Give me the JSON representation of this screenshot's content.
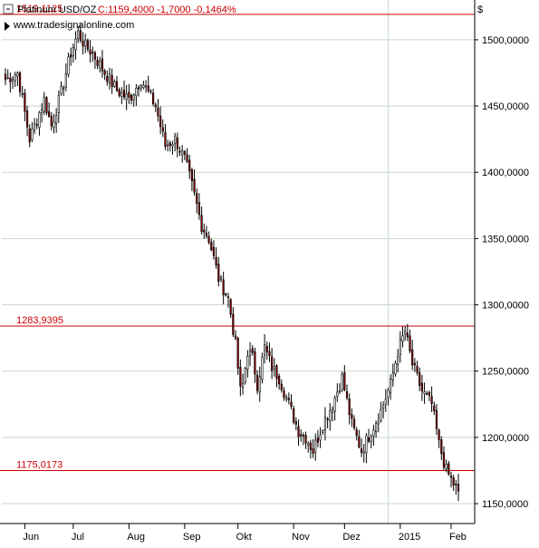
{
  "header": {
    "instrument": "Platinum USD/OZ",
    "quote": "C:1159,4000 -1,7000 -0,1464%",
    "website": "www.tradesignalonline.com"
  },
  "colors": {
    "background": "#ffffff",
    "grid": "#c8d8c8",
    "axis": "#000000",
    "up_candle": "#ffffff",
    "down_candle": "#8b0000",
    "candle_outline": "#000000",
    "level_line": "#cc0000",
    "quote_text": "#cc0000",
    "level_text": "#cc0000"
  },
  "icons": {
    "collapse": "collapse-toggle-icon",
    "site": "globe-icon"
  },
  "chart_data": {
    "type": "candlestick",
    "y_axis": {
      "unit": "$",
      "min": 1135,
      "max": 1530,
      "ticks": [
        {
          "value": 1150,
          "label": "1150,0000"
        },
        {
          "value": 1200,
          "label": "1200,0000"
        },
        {
          "value": 1250,
          "label": "1250,0000"
        },
        {
          "value": 1300,
          "label": "1300,0000"
        },
        {
          "value": 1350,
          "label": "1350,0000"
        },
        {
          "value": 1400,
          "label": "1400,0000"
        },
        {
          "value": 1450,
          "label": "1450,0000"
        },
        {
          "value": 1500,
          "label": "1500,0000"
        }
      ]
    },
    "x_axis": {
      "labels": [
        "Jun",
        "Jul",
        "Aug",
        "Sep",
        "Okt",
        "Nov",
        "Dez",
        "2015",
        "Feb"
      ],
      "ticks": [
        {
          "label": "Jun",
          "index": 8
        },
        {
          "label": "Jul",
          "index": 28
        },
        {
          "label": "Aug",
          "index": 51
        },
        {
          "label": "Sep",
          "index": 74
        },
        {
          "label": "Okt",
          "index": 96
        },
        {
          "label": "Nov",
          "index": 119
        },
        {
          "label": "Dez",
          "index": 140
        },
        {
          "label": "2015",
          "index": 163
        },
        {
          "label": "Feb",
          "index": 184
        }
      ],
      "highlight_year_index": 158
    },
    "levels": [
      {
        "value": 1519.1125,
        "label": "1519,1125"
      },
      {
        "value": 1283.9395,
        "label": "1283,9395"
      },
      {
        "value": 1175.0173,
        "label": "1175,0173"
      }
    ],
    "path_anchors": [
      [
        0,
        1470
      ],
      [
        5,
        1475
      ],
      [
        10,
        1425
      ],
      [
        13,
        1440
      ],
      [
        16,
        1455
      ],
      [
        19,
        1435
      ],
      [
        23,
        1460
      ],
      [
        27,
        1490
      ],
      [
        30,
        1505
      ],
      [
        33,
        1495
      ],
      [
        36,
        1490
      ],
      [
        40,
        1478
      ],
      [
        46,
        1462
      ],
      [
        51,
        1455
      ],
      [
        56,
        1470
      ],
      [
        62,
        1450
      ],
      [
        66,
        1420
      ],
      [
        70,
        1425
      ],
      [
        74,
        1410
      ],
      [
        77,
        1390
      ],
      [
        81,
        1360
      ],
      [
        84,
        1350
      ],
      [
        88,
        1320
      ],
      [
        92,
        1305
      ],
      [
        95,
        1270
      ],
      [
        97,
        1235
      ],
      [
        98,
        1240
      ],
      [
        100,
        1265
      ],
      [
        102,
        1260
      ],
      [
        104,
        1240
      ],
      [
        107,
        1268
      ],
      [
        110,
        1253
      ],
      [
        113,
        1245
      ],
      [
        117,
        1225
      ],
      [
        121,
        1205
      ],
      [
        124,
        1200
      ],
      [
        127,
        1190
      ],
      [
        131,
        1210
      ],
      [
        135,
        1225
      ],
      [
        139,
        1245
      ],
      [
        143,
        1210
      ],
      [
        147,
        1190
      ],
      [
        151,
        1205
      ],
      [
        155,
        1220
      ],
      [
        159,
        1240
      ],
      [
        162,
        1265
      ],
      [
        165,
        1280
      ],
      [
        168,
        1255
      ],
      [
        172,
        1235
      ],
      [
        176,
        1225
      ],
      [
        179,
        1195
      ],
      [
        182,
        1175
      ],
      [
        185,
        1165
      ],
      [
        187,
        1159.4
      ]
    ]
  }
}
